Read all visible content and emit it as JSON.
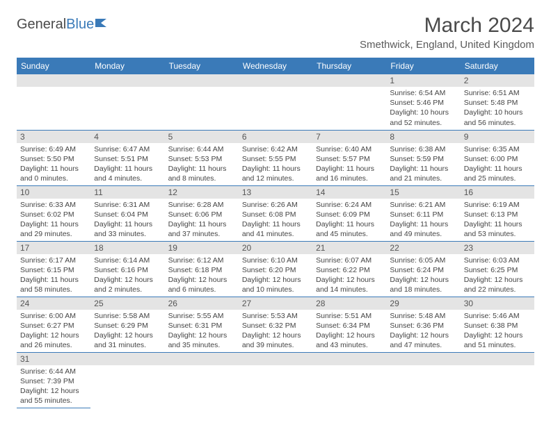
{
  "logo": {
    "text1": "General",
    "text2": "Blue"
  },
  "title": "March 2024",
  "location": "Smethwick, England, United Kingdom",
  "colors": {
    "header_bg": "#3a7ab8",
    "header_fg": "#ffffff",
    "daynum_bg": "#e4e4e4",
    "border": "#3a7ab8",
    "text": "#444444"
  },
  "typography": {
    "title_fontsize": 30,
    "location_fontsize": 15,
    "weekday_fontsize": 12,
    "cell_fontsize": 10.5
  },
  "weekdays": [
    "Sunday",
    "Monday",
    "Tuesday",
    "Wednesday",
    "Thursday",
    "Friday",
    "Saturday"
  ],
  "weeks": [
    [
      {
        "n": "",
        "sr": "",
        "ss": "",
        "dl": ""
      },
      {
        "n": "",
        "sr": "",
        "ss": "",
        "dl": ""
      },
      {
        "n": "",
        "sr": "",
        "ss": "",
        "dl": ""
      },
      {
        "n": "",
        "sr": "",
        "ss": "",
        "dl": ""
      },
      {
        "n": "",
        "sr": "",
        "ss": "",
        "dl": ""
      },
      {
        "n": "1",
        "sr": "Sunrise: 6:54 AM",
        "ss": "Sunset: 5:46 PM",
        "dl": "Daylight: 10 hours and 52 minutes."
      },
      {
        "n": "2",
        "sr": "Sunrise: 6:51 AM",
        "ss": "Sunset: 5:48 PM",
        "dl": "Daylight: 10 hours and 56 minutes."
      }
    ],
    [
      {
        "n": "3",
        "sr": "Sunrise: 6:49 AM",
        "ss": "Sunset: 5:50 PM",
        "dl": "Daylight: 11 hours and 0 minutes."
      },
      {
        "n": "4",
        "sr": "Sunrise: 6:47 AM",
        "ss": "Sunset: 5:51 PM",
        "dl": "Daylight: 11 hours and 4 minutes."
      },
      {
        "n": "5",
        "sr": "Sunrise: 6:44 AM",
        "ss": "Sunset: 5:53 PM",
        "dl": "Daylight: 11 hours and 8 minutes."
      },
      {
        "n": "6",
        "sr": "Sunrise: 6:42 AM",
        "ss": "Sunset: 5:55 PM",
        "dl": "Daylight: 11 hours and 12 minutes."
      },
      {
        "n": "7",
        "sr": "Sunrise: 6:40 AM",
        "ss": "Sunset: 5:57 PM",
        "dl": "Daylight: 11 hours and 16 minutes."
      },
      {
        "n": "8",
        "sr": "Sunrise: 6:38 AM",
        "ss": "Sunset: 5:59 PM",
        "dl": "Daylight: 11 hours and 21 minutes."
      },
      {
        "n": "9",
        "sr": "Sunrise: 6:35 AM",
        "ss": "Sunset: 6:00 PM",
        "dl": "Daylight: 11 hours and 25 minutes."
      }
    ],
    [
      {
        "n": "10",
        "sr": "Sunrise: 6:33 AM",
        "ss": "Sunset: 6:02 PM",
        "dl": "Daylight: 11 hours and 29 minutes."
      },
      {
        "n": "11",
        "sr": "Sunrise: 6:31 AM",
        "ss": "Sunset: 6:04 PM",
        "dl": "Daylight: 11 hours and 33 minutes."
      },
      {
        "n": "12",
        "sr": "Sunrise: 6:28 AM",
        "ss": "Sunset: 6:06 PM",
        "dl": "Daylight: 11 hours and 37 minutes."
      },
      {
        "n": "13",
        "sr": "Sunrise: 6:26 AM",
        "ss": "Sunset: 6:08 PM",
        "dl": "Daylight: 11 hours and 41 minutes."
      },
      {
        "n": "14",
        "sr": "Sunrise: 6:24 AM",
        "ss": "Sunset: 6:09 PM",
        "dl": "Daylight: 11 hours and 45 minutes."
      },
      {
        "n": "15",
        "sr": "Sunrise: 6:21 AM",
        "ss": "Sunset: 6:11 PM",
        "dl": "Daylight: 11 hours and 49 minutes."
      },
      {
        "n": "16",
        "sr": "Sunrise: 6:19 AM",
        "ss": "Sunset: 6:13 PM",
        "dl": "Daylight: 11 hours and 53 minutes."
      }
    ],
    [
      {
        "n": "17",
        "sr": "Sunrise: 6:17 AM",
        "ss": "Sunset: 6:15 PM",
        "dl": "Daylight: 11 hours and 58 minutes."
      },
      {
        "n": "18",
        "sr": "Sunrise: 6:14 AM",
        "ss": "Sunset: 6:16 PM",
        "dl": "Daylight: 12 hours and 2 minutes."
      },
      {
        "n": "19",
        "sr": "Sunrise: 6:12 AM",
        "ss": "Sunset: 6:18 PM",
        "dl": "Daylight: 12 hours and 6 minutes."
      },
      {
        "n": "20",
        "sr": "Sunrise: 6:10 AM",
        "ss": "Sunset: 6:20 PM",
        "dl": "Daylight: 12 hours and 10 minutes."
      },
      {
        "n": "21",
        "sr": "Sunrise: 6:07 AM",
        "ss": "Sunset: 6:22 PM",
        "dl": "Daylight: 12 hours and 14 minutes."
      },
      {
        "n": "22",
        "sr": "Sunrise: 6:05 AM",
        "ss": "Sunset: 6:24 PM",
        "dl": "Daylight: 12 hours and 18 minutes."
      },
      {
        "n": "23",
        "sr": "Sunrise: 6:03 AM",
        "ss": "Sunset: 6:25 PM",
        "dl": "Daylight: 12 hours and 22 minutes."
      }
    ],
    [
      {
        "n": "24",
        "sr": "Sunrise: 6:00 AM",
        "ss": "Sunset: 6:27 PM",
        "dl": "Daylight: 12 hours and 26 minutes."
      },
      {
        "n": "25",
        "sr": "Sunrise: 5:58 AM",
        "ss": "Sunset: 6:29 PM",
        "dl": "Daylight: 12 hours and 31 minutes."
      },
      {
        "n": "26",
        "sr": "Sunrise: 5:55 AM",
        "ss": "Sunset: 6:31 PM",
        "dl": "Daylight: 12 hours and 35 minutes."
      },
      {
        "n": "27",
        "sr": "Sunrise: 5:53 AM",
        "ss": "Sunset: 6:32 PM",
        "dl": "Daylight: 12 hours and 39 minutes."
      },
      {
        "n": "28",
        "sr": "Sunrise: 5:51 AM",
        "ss": "Sunset: 6:34 PM",
        "dl": "Daylight: 12 hours and 43 minutes."
      },
      {
        "n": "29",
        "sr": "Sunrise: 5:48 AM",
        "ss": "Sunset: 6:36 PM",
        "dl": "Daylight: 12 hours and 47 minutes."
      },
      {
        "n": "30",
        "sr": "Sunrise: 5:46 AM",
        "ss": "Sunset: 6:38 PM",
        "dl": "Daylight: 12 hours and 51 minutes."
      }
    ],
    [
      {
        "n": "31",
        "sr": "Sunrise: 6:44 AM",
        "ss": "Sunset: 7:39 PM",
        "dl": "Daylight: 12 hours and 55 minutes."
      },
      {
        "n": "",
        "sr": "",
        "ss": "",
        "dl": ""
      },
      {
        "n": "",
        "sr": "",
        "ss": "",
        "dl": ""
      },
      {
        "n": "",
        "sr": "",
        "ss": "",
        "dl": ""
      },
      {
        "n": "",
        "sr": "",
        "ss": "",
        "dl": ""
      },
      {
        "n": "",
        "sr": "",
        "ss": "",
        "dl": ""
      },
      {
        "n": "",
        "sr": "",
        "ss": "",
        "dl": ""
      }
    ]
  ]
}
